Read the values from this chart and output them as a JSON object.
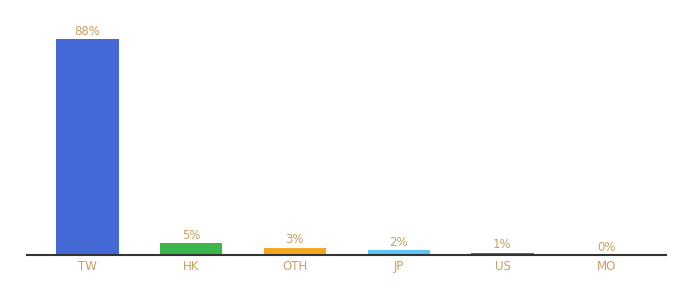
{
  "categories": [
    "TW",
    "HK",
    "OTH",
    "JP",
    "US",
    "MO"
  ],
  "values": [
    88,
    5,
    3,
    2,
    1,
    0
  ],
  "labels": [
    "88%",
    "5%",
    "3%",
    "2%",
    "1%",
    "0%"
  ],
  "bar_colors": [
    "#4469d6",
    "#3cb54a",
    "#f5a623",
    "#5bc8f5",
    "#b94a2c",
    "#cccccc"
  ],
  "label_color": "#c8a060",
  "background_color": "#ffffff",
  "ylim": [
    0,
    98
  ],
  "label_fontsize": 8.5,
  "tick_fontsize": 8.5,
  "tick_color": "#c8a060",
  "spine_color": "#333333"
}
